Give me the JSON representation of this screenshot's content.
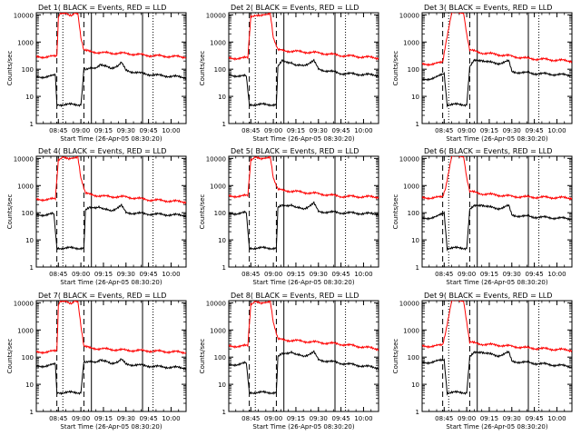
{
  "chart_data": [
    {
      "type": "line",
      "title": "Det 1(  BLACK = Events,  RED = LLD",
      "ylabel": "Counts/sec",
      "xlabel": "Start Time (26-Apr-05 08:30:20)",
      "x_ticks": [
        "08:45",
        "09:00",
        "09:15",
        "09:30",
        "09:45",
        "10:00"
      ],
      "y_ticks": [
        "1",
        "10",
        "100",
        "1000",
        "10000"
      ],
      "y_scale": "log",
      "ylim": [
        1,
        12000
      ],
      "series": [
        {
          "color": "#ff0000",
          "x": [
            "08:30",
            "08:40",
            "08:44",
            "08:45",
            "08:46",
            "08:50",
            "08:52",
            "08:54",
            "08:56",
            "08:58",
            "09:00",
            "09:02",
            "09:05",
            "09:15",
            "09:30",
            "09:45",
            "10:10"
          ],
          "y": [
            280,
            290,
            300,
            8000,
            12000,
            12000,
            9000,
            9000,
            12000,
            12000,
            1500,
            500,
            450,
            400,
            380,
            320,
            280
          ]
        },
        {
          "color": "#000000",
          "x": [
            "08:30",
            "08:40",
            "08:43",
            "08:44",
            "09:00",
            "09:01",
            "09:02",
            "09:03",
            "09:05",
            "09:10",
            "09:13",
            "09:15",
            "09:20",
            "09:25",
            "09:27",
            "09:30",
            "09:40",
            "09:50",
            "10:10"
          ],
          "y": [
            50,
            55,
            60,
            5,
            5,
            20,
            110,
            90,
            100,
            120,
            150,
            130,
            110,
            140,
            170,
            90,
            70,
            60,
            50
          ]
        }
      ]
    },
    {
      "type": "line",
      "title": "Det 2(  BLACK = Events,  RED = LLD",
      "ylabel": "Counts/sec",
      "xlabel": "Start Time (26-Apr-05 08:30:20)",
      "x_ticks": [
        "08:45",
        "09:00",
        "09:15",
        "09:30",
        "09:45",
        "10:00"
      ],
      "y_ticks": [
        "1",
        "10",
        "100",
        "1000",
        "10000"
      ],
      "y_scale": "log",
      "ylim": [
        1,
        12000
      ],
      "series": [
        {
          "color": "#ff0000",
          "x": [
            "08:30",
            "08:43",
            "08:45",
            "08:48",
            "08:52",
            "08:55",
            "08:58",
            "09:00",
            "09:03",
            "09:15",
            "09:30",
            "09:45",
            "10:10"
          ],
          "y": [
            250,
            260,
            9000,
            10000,
            9000,
            10000,
            12000,
            1500,
            500,
            450,
            400,
            320,
            260
          ]
        },
        {
          "color": "#000000",
          "x": [
            "08:30",
            "08:42",
            "08:44",
            "09:02",
            "09:03",
            "09:06",
            "09:12",
            "09:15",
            "09:20",
            "09:27",
            "09:30",
            "09:45",
            "10:10"
          ],
          "y": [
            60,
            55,
            5,
            5,
            120,
            200,
            180,
            130,
            140,
            200,
            100,
            70,
            60
          ]
        }
      ]
    },
    {
      "type": "line",
      "title": "Det 3(  BLACK = Events,  RED = LLD",
      "ylabel": "Counts/sec",
      "xlabel": "Start Time (26-Apr-05 08:30:20)",
      "x_ticks": [
        "08:45",
        "09:00",
        "09:15",
        "09:30",
        "09:45",
        "10:00"
      ],
      "y_ticks": [
        "1",
        "10",
        "100",
        "1000",
        "10000"
      ],
      "y_scale": "log",
      "ylim": [
        1,
        12000
      ],
      "series": [
        {
          "color": "#ff0000",
          "x": [
            "08:30",
            "08:40",
            "08:44",
            "08:46",
            "08:50",
            "08:58",
            "09:00",
            "09:02",
            "09:10",
            "09:20",
            "09:30",
            "09:40",
            "10:10"
          ],
          "y": [
            150,
            160,
            180,
            900,
            12000,
            12000,
            2000,
            500,
            400,
            350,
            300,
            250,
            200
          ]
        },
        {
          "color": "#000000",
          "x": [
            "08:30",
            "08:40",
            "08:45",
            "08:47",
            "09:00",
            "09:02",
            "09:05",
            "09:10",
            "09:15",
            "09:20",
            "09:28",
            "09:30",
            "09:45",
            "10:10"
          ],
          "y": [
            40,
            50,
            70,
            5,
            5,
            120,
            200,
            220,
            180,
            160,
            200,
            80,
            70,
            60
          ]
        }
      ]
    },
    {
      "type": "line",
      "title": "Det 4(  BLACK = Events,  RED = LLD",
      "ylabel": "Counts/sec",
      "xlabel": "Start Time (26-Apr-05 08:30:20)",
      "x_ticks": [
        "08:45",
        "09:00",
        "09:15",
        "09:30",
        "09:45",
        "10:00"
      ],
      "y_ticks": [
        "1",
        "10",
        "100",
        "1000",
        "10000"
      ],
      "y_scale": "log",
      "ylim": [
        1,
        12000
      ],
      "series": [
        {
          "color": "#ff0000",
          "x": [
            "08:30",
            "08:43",
            "08:45",
            "08:48",
            "08:52",
            "08:55",
            "08:58",
            "09:00",
            "09:03",
            "09:15",
            "09:30",
            "09:45",
            "10:10"
          ],
          "y": [
            300,
            320,
            9000,
            12000,
            9000,
            10000,
            12000,
            2000,
            500,
            400,
            380,
            300,
            250
          ]
        },
        {
          "color": "#000000",
          "x": [
            "08:30",
            "08:42",
            "08:44",
            "09:02",
            "09:03",
            "09:06",
            "09:12",
            "09:15",
            "09:20",
            "09:27",
            "09:30",
            "09:45",
            "10:10"
          ],
          "y": [
            80,
            90,
            5,
            5,
            120,
            150,
            170,
            130,
            120,
            180,
            100,
            90,
            80
          ]
        }
      ]
    },
    {
      "type": "line",
      "title": "Det 5(  BLACK = Events,  RED = LLD",
      "ylabel": "Counts/sec",
      "xlabel": "Start Time (26-Apr-05 08:30:20)",
      "x_ticks": [
        "08:45",
        "09:00",
        "09:15",
        "09:30",
        "09:45",
        "10:00"
      ],
      "y_ticks": [
        "1",
        "10",
        "100",
        "1000",
        "10000"
      ],
      "y_scale": "log",
      "ylim": [
        1,
        12000
      ],
      "series": [
        {
          "color": "#ff0000",
          "x": [
            "08:30",
            "08:43",
            "08:45",
            "08:48",
            "08:52",
            "08:55",
            "08:58",
            "09:00",
            "09:03",
            "09:15",
            "09:30",
            "09:45",
            "10:10"
          ],
          "y": [
            400,
            420,
            9000,
            12000,
            9000,
            10000,
            12000,
            2000,
            700,
            600,
            500,
            400,
            380
          ]
        },
        {
          "color": "#000000",
          "x": [
            "08:30",
            "08:42",
            "08:44",
            "09:02",
            "09:03",
            "09:06",
            "09:12",
            "09:15",
            "09:20",
            "09:27",
            "09:30",
            "09:45",
            "10:10"
          ],
          "y": [
            90,
            100,
            5,
            5,
            150,
            180,
            200,
            150,
            140,
            220,
            110,
            100,
            90
          ]
        }
      ]
    },
    {
      "type": "line",
      "title": "Det 6(  BLACK = Events,  RED = LLD",
      "ylabel": "Counts/sec",
      "xlabel": "Start Time (26-Apr-05 08:30:20)",
      "x_ticks": [
        "08:45",
        "09:00",
        "09:15",
        "09:30",
        "09:45",
        "10:00"
      ],
      "y_ticks": [
        "1",
        "10",
        "100",
        "1000",
        "10000"
      ],
      "y_scale": "log",
      "ylim": [
        1,
        12000
      ],
      "series": [
        {
          "color": "#ff0000",
          "x": [
            "08:30",
            "08:40",
            "08:44",
            "08:46",
            "08:50",
            "08:58",
            "09:00",
            "09:02",
            "09:10",
            "09:20",
            "09:30",
            "09:40",
            "10:10"
          ],
          "y": [
            350,
            360,
            380,
            900,
            12000,
            12000,
            2000,
            600,
            500,
            450,
            400,
            380,
            350
          ]
        },
        {
          "color": "#000000",
          "x": [
            "08:30",
            "08:40",
            "08:45",
            "08:47",
            "09:00",
            "09:02",
            "09:05",
            "09:10",
            "09:15",
            "09:20",
            "09:28",
            "09:30",
            "09:45",
            "10:10"
          ],
          "y": [
            60,
            70,
            100,
            5,
            5,
            130,
            170,
            200,
            160,
            140,
            180,
            80,
            70,
            60
          ]
        }
      ]
    },
    {
      "type": "line",
      "title": "Det 7(  BLACK = Events,  RED = LLD",
      "ylabel": "Counts/sec",
      "xlabel": "Start Time (26-Apr-05 08:30:20)",
      "x_ticks": [
        "08:45",
        "09:00",
        "09:15",
        "09:30",
        "09:45",
        "10:00"
      ],
      "y_ticks": [
        "1",
        "10",
        "100",
        "1000",
        "10000"
      ],
      "y_scale": "log",
      "ylim": [
        1,
        12000
      ],
      "series": [
        {
          "color": "#ff0000",
          "x": [
            "08:30",
            "08:40",
            "08:44",
            "08:45",
            "08:46",
            "08:50",
            "08:52",
            "08:54",
            "08:56",
            "08:58",
            "09:00",
            "09:02",
            "09:05",
            "09:15",
            "09:30",
            "09:45",
            "10:10"
          ],
          "y": [
            150,
            160,
            170,
            8000,
            12000,
            12000,
            9000,
            9000,
            12000,
            12000,
            1500,
            250,
            220,
            200,
            180,
            170,
            150
          ]
        },
        {
          "color": "#000000",
          "x": [
            "08:30",
            "08:40",
            "08:43",
            "08:44",
            "09:00",
            "09:01",
            "09:02",
            "09:03",
            "09:05",
            "09:10",
            "09:13",
            "09:15",
            "09:20",
            "09:25",
            "09:27",
            "09:30",
            "09:40",
            "09:50",
            "10:10"
          ],
          "y": [
            45,
            50,
            55,
            5,
            5,
            20,
            70,
            60,
            65,
            70,
            80,
            70,
            60,
            70,
            80,
            55,
            50,
            45,
            40
          ]
        }
      ]
    },
    {
      "type": "line",
      "title": "Det 8(  BLACK = Events,  RED = LLD",
      "ylabel": "Counts/sec",
      "xlabel": "Start Time (26-Apr-05 08:30:20)",
      "x_ticks": [
        "08:45",
        "09:00",
        "09:15",
        "09:30",
        "09:45",
        "10:00"
      ],
      "y_ticks": [
        "1",
        "10",
        "100",
        "1000",
        "10000"
      ],
      "y_scale": "log",
      "ylim": [
        1,
        12000
      ],
      "series": [
        {
          "color": "#ff0000",
          "x": [
            "08:30",
            "08:43",
            "08:45",
            "08:48",
            "08:52",
            "08:55",
            "08:58",
            "09:00",
            "09:03",
            "09:15",
            "09:30",
            "09:45",
            "10:10"
          ],
          "y": [
            250,
            260,
            9000,
            12000,
            9000,
            10000,
            12000,
            2000,
            450,
            400,
            350,
            300,
            200
          ]
        },
        {
          "color": "#000000",
          "x": [
            "08:30",
            "08:42",
            "08:44",
            "09:02",
            "09:03",
            "09:06",
            "09:12",
            "09:15",
            "09:20",
            "09:27",
            "09:30",
            "09:45",
            "10:10"
          ],
          "y": [
            50,
            60,
            5,
            5,
            100,
            130,
            160,
            120,
            110,
            150,
            80,
            60,
            40
          ]
        }
      ]
    },
    {
      "type": "line",
      "title": "Det 9(  BLACK = Events,  RED = LLD",
      "ylabel": "Counts/sec",
      "xlabel": "Start Time (26-Apr-05 08:30:20)",
      "x_ticks": [
        "08:45",
        "09:00",
        "09:15",
        "09:30",
        "09:45",
        "10:00"
      ],
      "y_ticks": [
        "1",
        "10",
        "100",
        "1000",
        "10000"
      ],
      "y_scale": "log",
      "ylim": [
        1,
        12000
      ],
      "series": [
        {
          "color": "#ff0000",
          "x": [
            "08:30",
            "08:40",
            "08:44",
            "08:46",
            "08:50",
            "08:58",
            "09:00",
            "09:02",
            "09:10",
            "09:20",
            "09:30",
            "09:40",
            "10:10"
          ],
          "y": [
            250,
            260,
            280,
            900,
            12000,
            12000,
            2000,
            350,
            300,
            280,
            250,
            220,
            180
          ]
        },
        {
          "color": "#000000",
          "x": [
            "08:30",
            "08:40",
            "08:45",
            "08:47",
            "09:00",
            "09:02",
            "09:05",
            "09:10",
            "09:15",
            "09:20",
            "09:28",
            "09:30",
            "09:45",
            "10:10"
          ],
          "y": [
            60,
            70,
            80,
            5,
            5,
            100,
            140,
            160,
            130,
            110,
            150,
            70,
            60,
            45
          ]
        }
      ]
    }
  ]
}
